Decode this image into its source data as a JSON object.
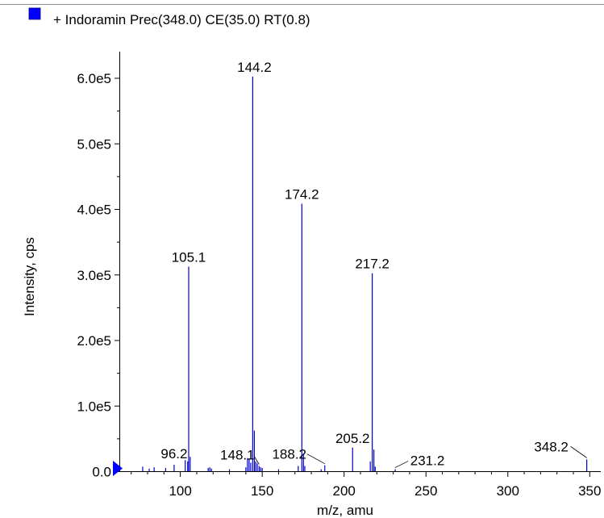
{
  "chart_data": {
    "type": "bar",
    "title": "+ Indoramin Prec(348.0) CE(35.0) RT(0.8)",
    "xlabel": "m/z, amu",
    "ylabel": "Intensity, cps",
    "xlim": [
      63,
      357
    ],
    "ylim": [
      0,
      640000
    ],
    "grid": false,
    "legend": "top-left",
    "series_color": "#0000cc",
    "legend_color": "#0000ff",
    "marker_color": "#0000ff",
    "x_ticks": [
      {
        "value": 100,
        "label": "100"
      },
      {
        "value": 150,
        "label": "150"
      },
      {
        "value": 200,
        "label": "200"
      },
      {
        "value": 250,
        "label": "250"
      },
      {
        "value": 300,
        "label": "300"
      },
      {
        "value": 350,
        "label": "350"
      }
    ],
    "y_ticks": [
      {
        "value": 0,
        "label": "0.0"
      },
      {
        "value": 100000,
        "label": "1.0e5"
      },
      {
        "value": 200000,
        "label": "2.0e5"
      },
      {
        "value": 300000,
        "label": "3.0e5"
      },
      {
        "value": 400000,
        "label": "4.0e5"
      },
      {
        "value": 500000,
        "label": "5.0e5"
      },
      {
        "value": 600000,
        "label": "6.0e5"
      }
    ],
    "peaks": [
      {
        "x": 77.0,
        "y": 7000
      },
      {
        "x": 81.0,
        "y": 4000
      },
      {
        "x": 84.0,
        "y": 6000
      },
      {
        "x": 91.0,
        "y": 5000
      },
      {
        "x": 96.2,
        "y": 10000
      },
      {
        "x": 103.0,
        "y": 17000
      },
      {
        "x": 104.5,
        "y": 15000
      },
      {
        "x": 105.1,
        "y": 312000
      },
      {
        "x": 106.0,
        "y": 22000
      },
      {
        "x": 117.0,
        "y": 5000
      },
      {
        "x": 118.0,
        "y": 6000
      },
      {
        "x": 119.0,
        "y": 4000
      },
      {
        "x": 130.0,
        "y": 3000
      },
      {
        "x": 140.0,
        "y": 6000
      },
      {
        "x": 141.0,
        "y": 20000
      },
      {
        "x": 142.0,
        "y": 18000
      },
      {
        "x": 143.0,
        "y": 13000
      },
      {
        "x": 144.2,
        "y": 602000
      },
      {
        "x": 145.2,
        "y": 62000
      },
      {
        "x": 146.0,
        "y": 15000
      },
      {
        "x": 147.0,
        "y": 12000
      },
      {
        "x": 148.1,
        "y": 8000
      },
      {
        "x": 149.0,
        "y": 6000
      },
      {
        "x": 150.0,
        "y": 5000
      },
      {
        "x": 160.0,
        "y": 3000
      },
      {
        "x": 172.0,
        "y": 8000
      },
      {
        "x": 174.2,
        "y": 408000
      },
      {
        "x": 175.2,
        "y": 27000
      },
      {
        "x": 176.0,
        "y": 8000
      },
      {
        "x": 186.0,
        "y": 3000
      },
      {
        "x": 188.2,
        "y": 9000
      },
      {
        "x": 205.2,
        "y": 36000
      },
      {
        "x": 216.0,
        "y": 15000
      },
      {
        "x": 217.2,
        "y": 302000
      },
      {
        "x": 218.2,
        "y": 33000
      },
      {
        "x": 219.0,
        "y": 7000
      },
      {
        "x": 231.2,
        "y": 3000
      },
      {
        "x": 348.2,
        "y": 18000
      }
    ],
    "annotations": [
      {
        "label": "144.2",
        "x": 144.2,
        "y": 602000
      },
      {
        "label": "174.2",
        "x": 174.2,
        "y": 408000
      },
      {
        "label": "105.1",
        "x": 105.1,
        "y": 312000
      },
      {
        "label": "217.2",
        "x": 217.2,
        "y": 302000
      },
      {
        "label": "205.2",
        "x": 205.2,
        "y": 36000
      },
      {
        "label": "96.2",
        "x": 96.2,
        "y": 10000
      },
      {
        "label": "148.1",
        "x": 148.1,
        "y": 8000
      },
      {
        "label": "188.2",
        "x": 188.2,
        "y": 9000
      },
      {
        "label": "231.2",
        "x": 231.2,
        "y": 3000
      },
      {
        "label": "348.2",
        "x": 348.2,
        "y": 18000
      }
    ]
  }
}
